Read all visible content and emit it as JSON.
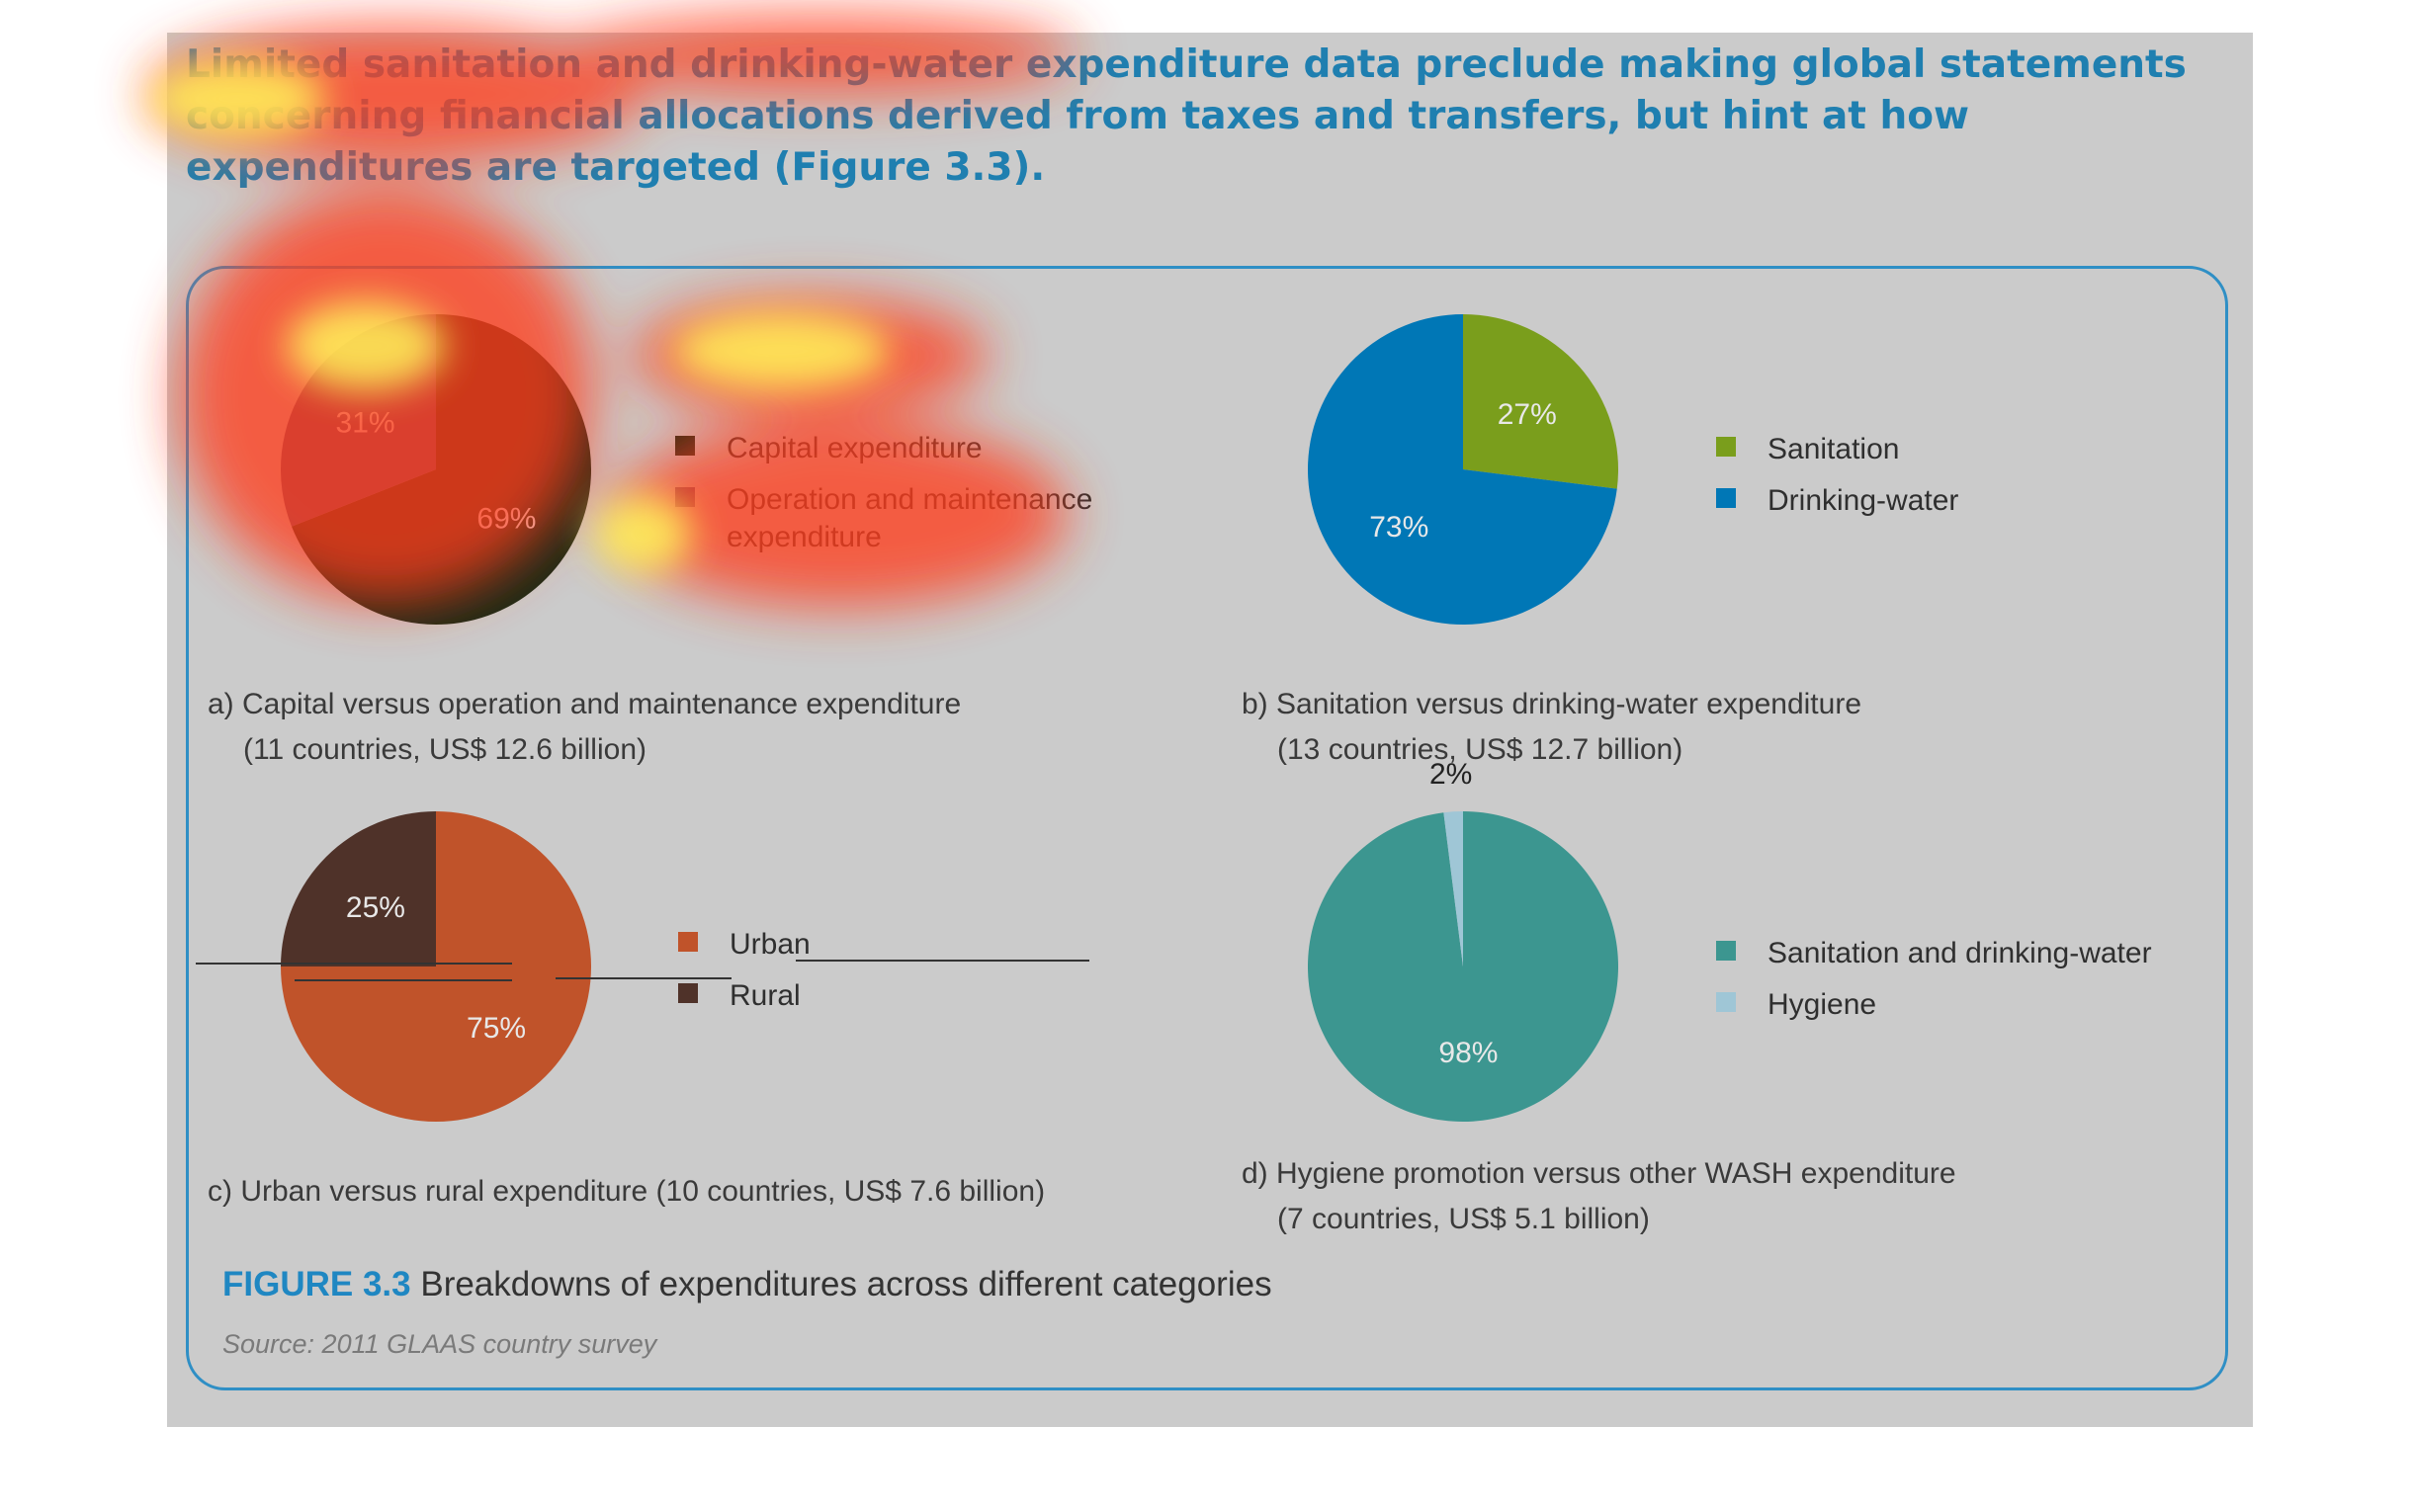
{
  "heading": "Limited sanitation and drinking-water expenditure data preclude making global statements concerning financial allocations derived from taxes and transfers, but hint at how expenditures are targeted (Figure 3.3).",
  "figure": {
    "label": "FIGURE 3.3",
    "title": "Breakdowns of expenditures across different categories",
    "source": "Source: 2011 GLAAS country survey"
  },
  "captions": {
    "a": {
      "line1": "a) Capital versus operation and maintenance expenditure",
      "line2": "(11 countries, US$ 12.6 billion)"
    },
    "b": {
      "line1": "b) Sanitation versus drinking-water expenditure",
      "line2": "(13 countries, US$ 12.7 billion)"
    },
    "c": {
      "line1": "c) Urban versus rural expenditure (10 countries, US$ 7.6 billion)"
    },
    "d": {
      "line1": "d) Hygiene promotion versus other WASH expenditure",
      "line2": "(7 countries, US$ 5.1 billion)"
    }
  },
  "chart_data": [
    {
      "id": "a",
      "type": "pie",
      "title": "",
      "legend_position": "right",
      "slices": [
        {
          "label": "Capital expenditure",
          "value": 69,
          "display": "69%",
          "color": "#1b2a17"
        },
        {
          "label": "Operation and maintenance expenditure",
          "value": 31,
          "display": "31%",
          "color": "#5a4a72"
        }
      ]
    },
    {
      "id": "b",
      "type": "pie",
      "title": "",
      "legend_position": "right",
      "slices": [
        {
          "label": "Sanitation",
          "value": 27,
          "display": "27%",
          "color": "#7a9e1c"
        },
        {
          "label": "Drinking-water",
          "value": 73,
          "display": "73%",
          "color": "#0077b6"
        }
      ]
    },
    {
      "id": "c",
      "type": "pie",
      "title": "",
      "legend_position": "right",
      "slices": [
        {
          "label": "Urban",
          "value": 75,
          "display": "75%",
          "color": "#c0532a"
        },
        {
          "label": "Rural",
          "value": 25,
          "display": "25%",
          "color": "#4f3229"
        }
      ]
    },
    {
      "id": "d",
      "type": "pie",
      "title": "",
      "legend_position": "right",
      "slices": [
        {
          "label": "Sanitation and drinking-water",
          "value": 98,
          "display": "98%",
          "color": "#3c9690"
        },
        {
          "label": "Hygiene",
          "value": 2,
          "display": "2%",
          "color": "#9fc6d6"
        }
      ]
    }
  ],
  "colors": {
    "heading": "#1f7fb0",
    "figure_label": "#1f87c2",
    "frame": "#2f8fc5",
    "background": "#cbcbcb"
  }
}
